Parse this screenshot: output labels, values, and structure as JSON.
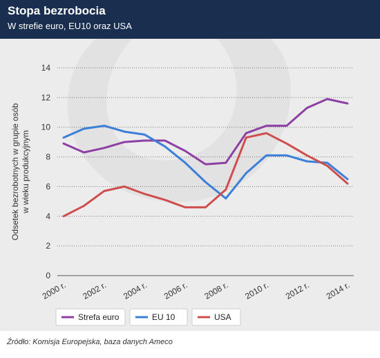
{
  "header": {
    "title": "Stopa bezrobocia",
    "subtitle": "W strefie euro, EU10 oraz USA"
  },
  "source": "Źródło: Komisja Europejska, baza danych Ameco",
  "chart_data": {
    "type": "line",
    "ylabel": "Odsetek bezrobotnych w grupie osób w wieku produkcyjnym",
    "ylabel_lines": [
      "Odsetek bezrobotnych w grupie osób",
      "w wieku produkcyjnym"
    ],
    "xlabel": "",
    "ylim": [
      0,
      14
    ],
    "yticks": [
      0,
      2,
      4,
      6,
      8,
      10,
      12,
      14
    ],
    "x": [
      2000,
      2001,
      2002,
      2003,
      2004,
      2005,
      2006,
      2007,
      2008,
      2009,
      2010,
      2011,
      2012,
      2013,
      2014
    ],
    "xtick_labels": [
      "2000 r.",
      "2002 r.",
      "2004 r.",
      "2006 r.",
      "2008 r.",
      "2010 r.",
      "2012 r.",
      "2014 r."
    ],
    "xtick_values": [
      2000,
      2002,
      2004,
      2006,
      2008,
      2010,
      2012,
      2014
    ],
    "grid": true,
    "legend_position": "bottom",
    "series": [
      {
        "name": "Strefa euro",
        "color": "#8e3fa3",
        "values": [
          8.9,
          8.3,
          8.6,
          9.0,
          9.1,
          9.1,
          8.4,
          7.5,
          7.6,
          9.6,
          10.1,
          10.1,
          11.3,
          11.9,
          11.6
        ]
      },
      {
        "name": "EU 10",
        "color": "#3b7fd9",
        "values": [
          9.3,
          9.9,
          10.1,
          9.7,
          9.5,
          8.7,
          7.6,
          6.3,
          5.2,
          6.9,
          8.1,
          8.1,
          7.7,
          7.6,
          6.5
        ]
      },
      {
        "name": "USA",
        "color": "#cf4d4d",
        "values": [
          4.0,
          4.7,
          5.7,
          6.0,
          5.5,
          5.1,
          4.6,
          4.6,
          5.8,
          9.3,
          9.6,
          8.9,
          8.1,
          7.4,
          6.2
        ]
      }
    ]
  }
}
